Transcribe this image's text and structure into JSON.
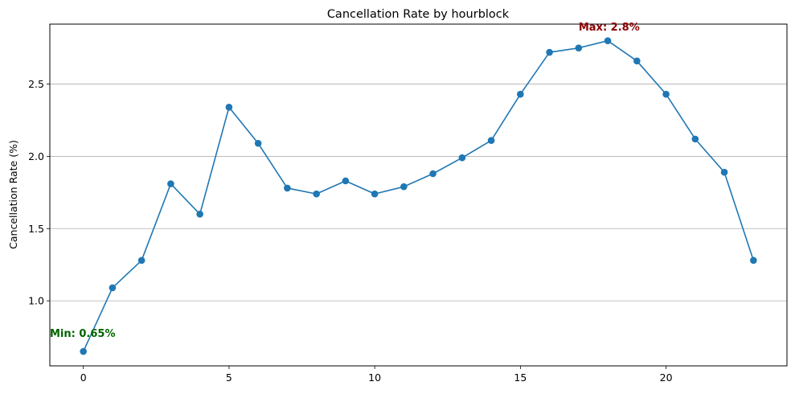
{
  "chart_data": {
    "type": "line",
    "title": "Cancellation Rate by hourblock",
    "xlabel": "",
    "ylabel": "Cancellation Rate (%)",
    "x": [
      0,
      1,
      2,
      3,
      4,
      5,
      6,
      7,
      8,
      9,
      10,
      11,
      12,
      13,
      14,
      15,
      16,
      17,
      18,
      19,
      20,
      21,
      22,
      23
    ],
    "series": [
      {
        "values": [
          0.65,
          1.09,
          1.28,
          1.81,
          1.6,
          2.34,
          2.09,
          1.78,
          1.74,
          1.83,
          1.74,
          1.79,
          1.88,
          1.99,
          2.11,
          2.43,
          2.72,
          2.75,
          2.8,
          2.66,
          2.43,
          2.12,
          1.89,
          1.28
        ],
        "color": "#1f77b4"
      }
    ],
    "xlim": [
      -1.15,
      24.15
    ],
    "ylim": [
      0.55,
      2.915
    ],
    "xticks": [
      0,
      5,
      10,
      15,
      20
    ],
    "yticks": [
      1.0,
      1.5,
      2.0,
      2.5
    ],
    "ytick_labels": [
      "1.0",
      "1.5",
      "2.0",
      "2.5"
    ],
    "grid": "y-major",
    "annotations": [
      {
        "text": "Max: 2.8%",
        "x": 17,
        "y": 2.87,
        "color": "#8b0000"
      },
      {
        "text": "Min: 0.65%",
        "x": -1.15,
        "y": 0.75,
        "color": "#006400"
      }
    ]
  }
}
